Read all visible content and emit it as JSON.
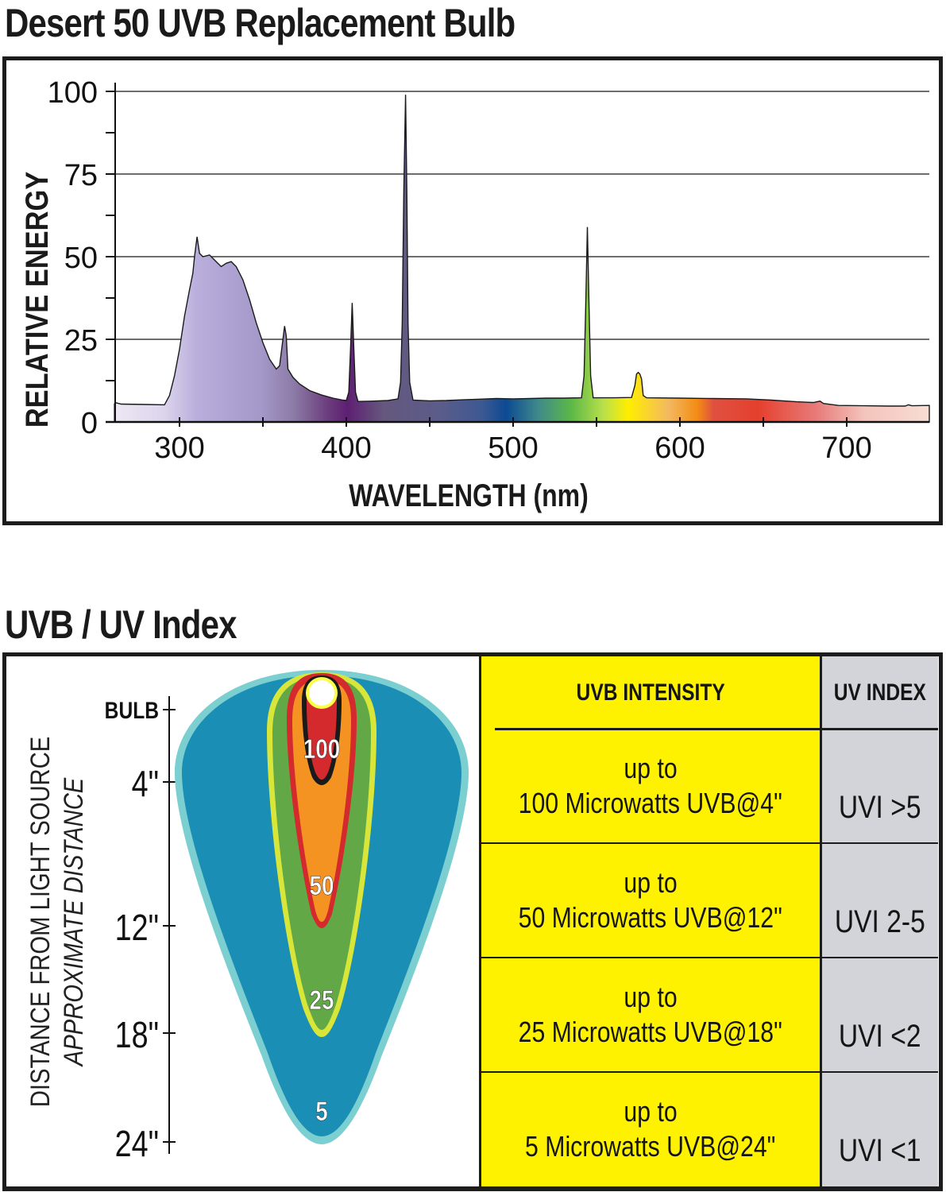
{
  "titles": {
    "spectrum": "Desert 50 UVB Replacement Bulb",
    "index": "UVB / UV Index"
  },
  "chart_data": {
    "type": "area",
    "title": "Desert 50 UVB Replacement Bulb",
    "xlabel": "WAVELENGTH (nm)",
    "ylabel": "RELATIVE ENERGY",
    "xlim": [
      261,
      750
    ],
    "ylim": [
      0,
      100
    ],
    "x_ticks": [
      300,
      400,
      500,
      600,
      700
    ],
    "x_minor_ticks": [
      350,
      450,
      550,
      650
    ],
    "y_ticks": [
      0,
      25,
      50,
      75,
      100
    ],
    "y_minor_ticks": [
      12.5,
      37.5,
      62.5,
      87.5
    ],
    "grid": true,
    "fill": "visible-spectrum gradient",
    "series": [
      {
        "name": "Relative energy",
        "points": [
          [
            261,
            5.5
          ],
          [
            262,
            5.8
          ],
          [
            265,
            5.4
          ],
          [
            280,
            5.3
          ],
          [
            291,
            5.2
          ],
          [
            294,
            8
          ],
          [
            297,
            14
          ],
          [
            300,
            22
          ],
          [
            303,
            32
          ],
          [
            306,
            40
          ],
          [
            308,
            45
          ],
          [
            309,
            50
          ],
          [
            310.5,
            56
          ],
          [
            312,
            51
          ],
          [
            314,
            50
          ],
          [
            318,
            50.5
          ],
          [
            322,
            48.5
          ],
          [
            325,
            47
          ],
          [
            328,
            48
          ],
          [
            331,
            48.5
          ],
          [
            334,
            47
          ],
          [
            338,
            43
          ],
          [
            342,
            37
          ],
          [
            346,
            30
          ],
          [
            350,
            24
          ],
          [
            354,
            19
          ],
          [
            358,
            16
          ],
          [
            360,
            17
          ],
          [
            362,
            25
          ],
          [
            363,
            29
          ],
          [
            364,
            26
          ],
          [
            365,
            16
          ],
          [
            368,
            13.5
          ],
          [
            372,
            11.5
          ],
          [
            378,
            9.5
          ],
          [
            385,
            8.2
          ],
          [
            392,
            7.2
          ],
          [
            398,
            6.6
          ],
          [
            400,
            6.5
          ],
          [
            401.5,
            9
          ],
          [
            402.5,
            22
          ],
          [
            403.5,
            36
          ],
          [
            404.5,
            22
          ],
          [
            405.5,
            9
          ],
          [
            407,
            6.2
          ],
          [
            415,
            6.3
          ],
          [
            425,
            6.5
          ],
          [
            431,
            7
          ],
          [
            432.5,
            12
          ],
          [
            433.5,
            30
          ],
          [
            434.5,
            70
          ],
          [
            435.5,
            99
          ],
          [
            436.3,
            70
          ],
          [
            437,
            30
          ],
          [
            438,
            12
          ],
          [
            440,
            6.6
          ],
          [
            450,
            6.4
          ],
          [
            460,
            6.5
          ],
          [
            470,
            6.7
          ],
          [
            480,
            6.9
          ],
          [
            490,
            7.1
          ],
          [
            500,
            7.0
          ],
          [
            510,
            7.1
          ],
          [
            520,
            7.2
          ],
          [
            530,
            7.2
          ],
          [
            541,
            7.3
          ],
          [
            542.5,
            14
          ],
          [
            543.5,
            35
          ],
          [
            544.5,
            59
          ],
          [
            545.5,
            35
          ],
          [
            546.5,
            14
          ],
          [
            548,
            7.3
          ],
          [
            560,
            7.3
          ],
          [
            571,
            7.4
          ],
          [
            573,
            11
          ],
          [
            574,
            14.5
          ],
          [
            575,
            15
          ],
          [
            576,
            14.5
          ],
          [
            577,
            13
          ],
          [
            578,
            8
          ],
          [
            580,
            7.3
          ],
          [
            600,
            7.2
          ],
          [
            620,
            7.1
          ],
          [
            640,
            7.0
          ],
          [
            655,
            6.6
          ],
          [
            670,
            6.1
          ],
          [
            680,
            5.9
          ],
          [
            684,
            6.3
          ],
          [
            686,
            5.6
          ],
          [
            695,
            5.0
          ],
          [
            710,
            4.9
          ],
          [
            725,
            4.8
          ],
          [
            735,
            4.8
          ],
          [
            737,
            5.2
          ],
          [
            739,
            4.9
          ],
          [
            750,
            5.0
          ]
        ]
      }
    ]
  },
  "uv_index": {
    "axis": {
      "title": "DISTANCE FROM LIGHT SOURCE",
      "subtitle": "APPROXIMATE DISTANCE",
      "ticks": [
        {
          "label": "BULB",
          "inches": 0
        },
        {
          "label": "4\"",
          "inches": 4
        },
        {
          "label": "12\"",
          "inches": 12
        },
        {
          "label": "18\"",
          "inches": 18
        },
        {
          "label": "24\"",
          "inches": 24
        }
      ]
    },
    "zones": [
      {
        "value": "100",
        "inches": 4,
        "color": "#d42a2e"
      },
      {
        "value": "50",
        "inches": 12,
        "color": "#f59322"
      },
      {
        "value": "25",
        "inches": 18,
        "color": "#62a846"
      },
      {
        "value": "5",
        "inches": 24,
        "color": "#1b8eb5"
      }
    ],
    "table": {
      "headers": [
        "UVB INTENSITY",
        "UV INDEX"
      ],
      "rows": [
        {
          "line1": "up to",
          "line2": "100 Microwatts UVB@4\"",
          "uvi": "UVI >5"
        },
        {
          "line1": "up to",
          "line2": "50 Microwatts UVB@12\"",
          "uvi": "UVI 2-5"
        },
        {
          "line1": "up to",
          "line2": "25 Microwatts UVB@18\"",
          "uvi": "UVI <2"
        },
        {
          "line1": "up to",
          "line2": "5 Microwatts UVB@24\"",
          "uvi": "UVI <1"
        }
      ]
    },
    "colors": {
      "table_yellow": "#fff200",
      "table_gray": "#d2d4d9",
      "cone_outline": "#7ccfd1",
      "zone_outline_yellow": "#d8e63a"
    }
  }
}
